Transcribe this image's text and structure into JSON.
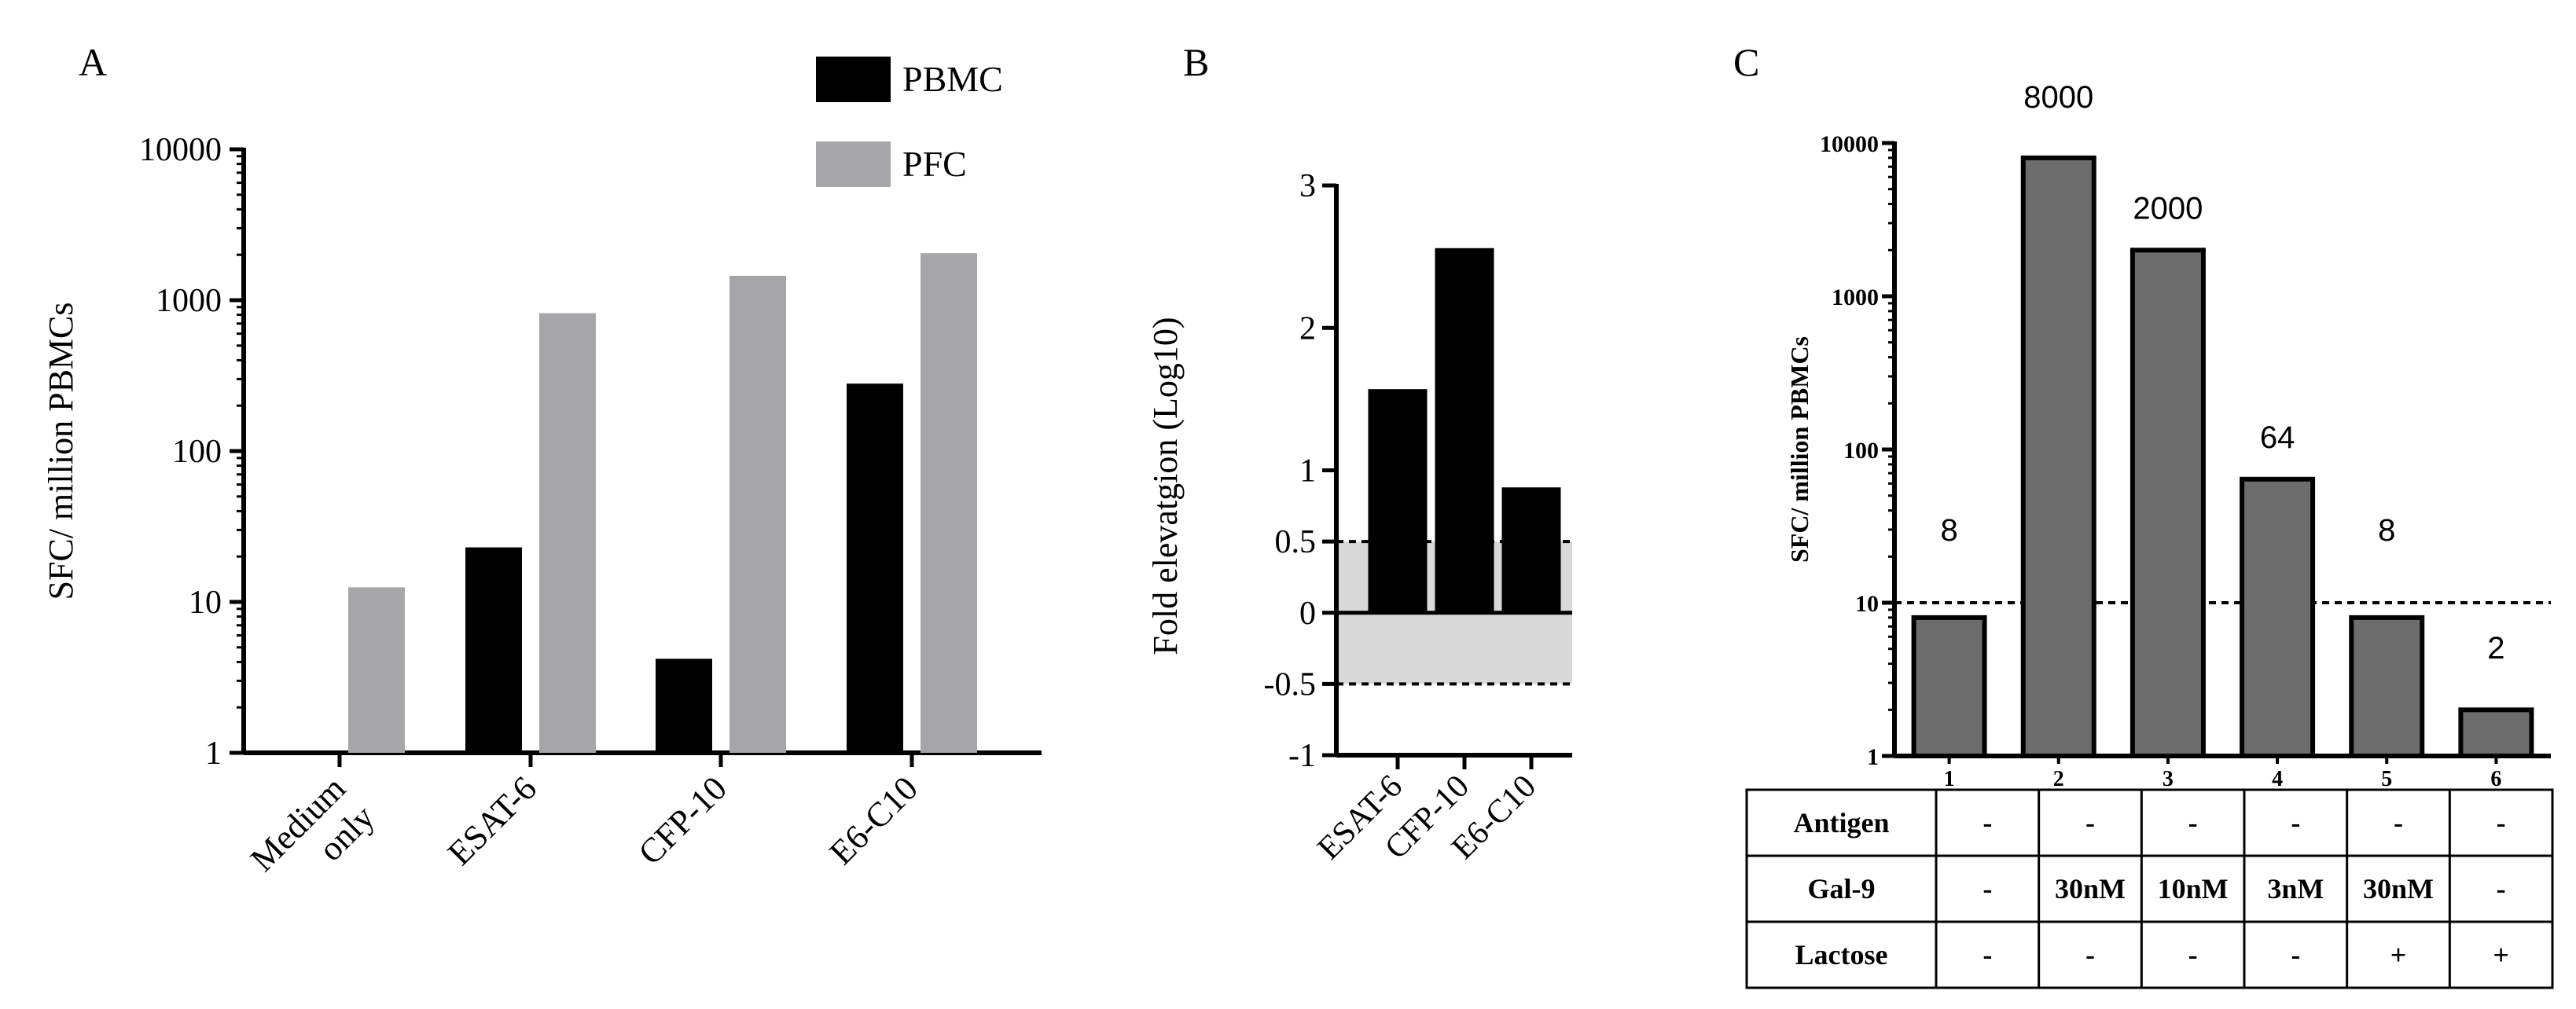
{
  "chart_data": [
    {
      "panel": "A",
      "type": "bar",
      "yscale": "log",
      "ylim": [
        1,
        10000
      ],
      "yticks": [
        "1",
        "10",
        "100",
        "1000",
        "10000"
      ],
      "ylabel": "SFC/ million PBMCs",
      "categories": [
        "Medium only",
        "ESAT-6",
        "CFP-10",
        "E6-C10"
      ],
      "category_lines": [
        [
          "Medium",
          "only"
        ],
        [
          "ESAT-6"
        ],
        [
          "CFP-10"
        ],
        [
          "E6-C10"
        ]
      ],
      "series": [
        {
          "name": "PBMC",
          "color": "#000000",
          "values": [
            1,
            23,
            4.2,
            280
          ]
        },
        {
          "name": "PFC",
          "color": "#a6a6a8",
          "values": [
            12.5,
            820,
            1450,
            2050
          ]
        }
      ],
      "legend": "top-right"
    },
    {
      "panel": "B",
      "type": "bar",
      "ylim": [
        -1,
        3
      ],
      "yticks": [
        "-1",
        "-0.5",
        "0",
        "0.5",
        "1",
        "2",
        "3"
      ],
      "ytick_values": [
        -1,
        -0.5,
        0,
        0.5,
        1,
        2,
        3
      ],
      "ylabel": "Fold elevatgion (Log10)",
      "categories": [
        "ESAT-6",
        "CFP-10",
        "E6-C10"
      ],
      "values": [
        1.57,
        2.56,
        0.88
      ],
      "color": "#000000",
      "shaded_band": [
        -0.5,
        0.5
      ],
      "reference_lines": [
        0.5,
        -0.5
      ]
    },
    {
      "panel": "C",
      "type": "bar",
      "yscale": "log",
      "ylim": [
        1,
        10000
      ],
      "yticks": [
        "1",
        "10",
        "100",
        "1000",
        "10000"
      ],
      "ylabel": "SFC/ million PBMCs",
      "categories": [
        "1",
        "2",
        "3",
        "4",
        "5",
        "6"
      ],
      "values": [
        8,
        8000,
        2000,
        64,
        8,
        2
      ],
      "value_labels": [
        "8",
        "8000",
        "2000",
        "64",
        "8",
        "2"
      ],
      "color": "#6d6d6d",
      "reference_line": 10,
      "table": {
        "rows": [
          {
            "label": "Antigen",
            "cells": [
              "-",
              "-",
              "-",
              "-",
              "-",
              "-"
            ]
          },
          {
            "label": "Gal-9",
            "cells": [
              "-",
              "30nM",
              "10nM",
              "3nM",
              "30nM",
              "-"
            ]
          },
          {
            "label": "Lactose",
            "cells": [
              "-",
              "-",
              "-",
              "-",
              "+",
              "+"
            ]
          }
        ]
      }
    }
  ]
}
